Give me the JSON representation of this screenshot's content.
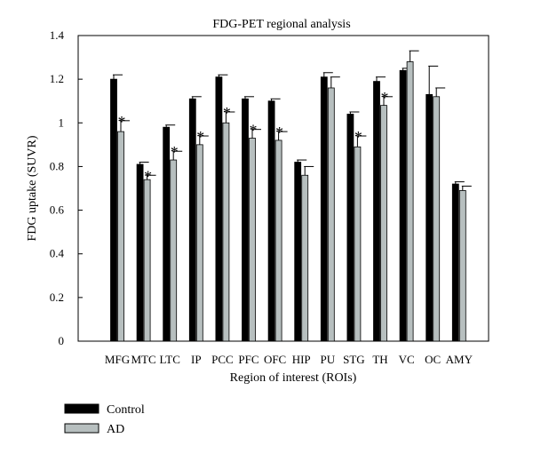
{
  "chart_data": {
    "type": "bar",
    "title": "FDG-PET regional analysis",
    "xlabel": "Region of interest (ROIs)",
    "ylabel": "FDG uptake (SUVR)",
    "ylim": [
      0,
      1.4
    ],
    "yticks": [
      0,
      0.2,
      0.4,
      0.6,
      0.8,
      1,
      1.2,
      1.4
    ],
    "ytick_labels": [
      "0",
      "0.2",
      "0.4",
      "0.6",
      "0.8",
      "1",
      "1.2",
      "1.4"
    ],
    "categories": [
      "MFG",
      "MTC",
      "LTC",
      "IP",
      "PCC",
      "PFC",
      "OFC",
      "HIP",
      "PU",
      "STG",
      "TH",
      "VC",
      "OC",
      "AMY"
    ],
    "series": [
      {
        "name": "Control",
        "color": "#000000",
        "values": [
          1.2,
          0.81,
          0.98,
          1.11,
          1.21,
          1.11,
          1.1,
          0.82,
          1.21,
          1.04,
          1.19,
          1.24,
          1.13,
          0.72
        ],
        "errors": [
          0.02,
          0.01,
          0.01,
          0.01,
          0.01,
          0.01,
          0.01,
          0.01,
          0.02,
          0.01,
          0.02,
          0.01,
          0.13,
          0.01
        ]
      },
      {
        "name": "AD",
        "color": "#b7bfbf",
        "values": [
          0.96,
          0.74,
          0.83,
          0.9,
          1.0,
          0.93,
          0.92,
          0.76,
          1.16,
          0.89,
          1.08,
          1.28,
          1.12,
          0.69
        ],
        "errors": [
          0.05,
          0.02,
          0.04,
          0.04,
          0.05,
          0.04,
          0.04,
          0.04,
          0.05,
          0.05,
          0.04,
          0.05,
          0.04,
          0.02
        ]
      }
    ],
    "significance_marker": "*",
    "significant": [
      true,
      true,
      true,
      true,
      true,
      true,
      true,
      false,
      false,
      true,
      true,
      false,
      false,
      false
    ],
    "legend_position": "bottom-left",
    "grid": false
  }
}
